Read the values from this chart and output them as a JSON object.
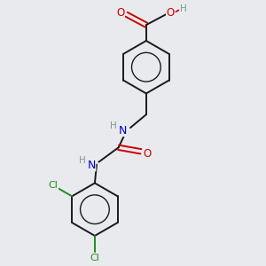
{
  "background_color": "#e8eaed",
  "bond_color": "#1a1a1a",
  "O_color": "#cc0000",
  "N_color": "#0000cc",
  "Cl_color": "#228B22",
  "H_color": "#7a9a9a",
  "figsize": [
    3.0,
    3.0
  ],
  "dpi": 100,
  "xlim": [
    0,
    10
  ],
  "ylim": [
    0,
    10
  ]
}
